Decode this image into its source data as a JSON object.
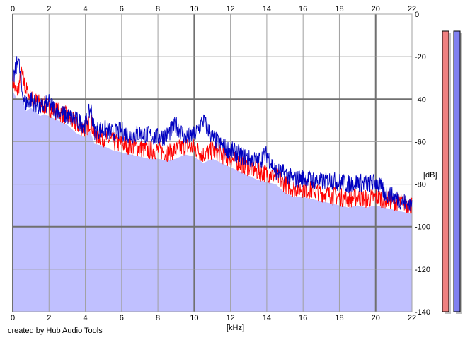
{
  "chart_data": {
    "type": "line",
    "xlabel": "[kHz]",
    "ylabel": "[dB]",
    "xlim": [
      0,
      22
    ],
    "ylim": [
      -140,
      0
    ],
    "x_ticks": [
      0,
      2,
      4,
      6,
      8,
      10,
      12,
      14,
      16,
      18,
      20,
      22
    ],
    "y_ticks": [
      0,
      -20,
      -40,
      -60,
      -80,
      -100,
      -120,
      -140
    ],
    "grid": true,
    "background_fill_color": "#c0c0ff",
    "series": [
      {
        "color": "#ff0000",
        "x": [
          0,
          0.2,
          0.5,
          0.7,
          1,
          1.5,
          2,
          2.5,
          3,
          3.5,
          4,
          4.3,
          4.5,
          5,
          5.5,
          6,
          6.5,
          7,
          7.5,
          8,
          8.5,
          9,
          9.5,
          10,
          10.5,
          11,
          11.5,
          12,
          12.5,
          13,
          13.5,
          14,
          14.5,
          15,
          15.5,
          16,
          16.5,
          17,
          17.5,
          18,
          18.5,
          19,
          19.5,
          20,
          20.5,
          21,
          21.5,
          22
        ],
        "values": [
          -30,
          -38,
          -28,
          -35,
          -40,
          -42,
          -44,
          -46,
          -48,
          -52,
          -54,
          -50,
          -57,
          -58,
          -60,
          -61,
          -62,
          -63,
          -64,
          -64,
          -65,
          -64,
          -62,
          -63,
          -66,
          -64,
          -66,
          -68,
          -70,
          -72,
          -74,
          -75,
          -76,
          -80,
          -82,
          -82,
          -83,
          -84,
          -85,
          -86,
          -87,
          -86,
          -87,
          -86,
          -87,
          -88,
          -89,
          -90
        ]
      },
      {
        "color": "#0000c0",
        "x": [
          0,
          0.2,
          0.3,
          0.5,
          0.7,
          1,
          1.5,
          2,
          2.5,
          3,
          3.5,
          4,
          4.3,
          4.5,
          5,
          5.5,
          6,
          6.5,
          7,
          7.5,
          8,
          8.5,
          9,
          9.5,
          10,
          10.5,
          11,
          11.5,
          12,
          12.5,
          13,
          13.5,
          14,
          14.5,
          15,
          15.5,
          16,
          16.5,
          17,
          17.5,
          18,
          18.5,
          19,
          19.5,
          20,
          20.5,
          21,
          21.5,
          22
        ],
        "values": [
          -32,
          -25,
          -20,
          -36,
          -42,
          -40,
          -44,
          -42,
          -46,
          -48,
          -50,
          -52,
          -44,
          -55,
          -54,
          -56,
          -55,
          -57,
          -56,
          -57,
          -58,
          -57,
          -52,
          -58,
          -57,
          -50,
          -58,
          -62,
          -64,
          -66,
          -68,
          -69,
          -66,
          -74,
          -75,
          -78,
          -77,
          -78,
          -79,
          -78,
          -79,
          -80,
          -79,
          -80,
          -79,
          -84,
          -86,
          -88,
          -90
        ]
      }
    ],
    "meters": [
      {
        "fill_ratio": 0.85,
        "color": "#f08080"
      },
      {
        "fill_ratio": 0.85,
        "color": "#8080f0"
      }
    ]
  },
  "credit": "created by Hub Audio Tools"
}
